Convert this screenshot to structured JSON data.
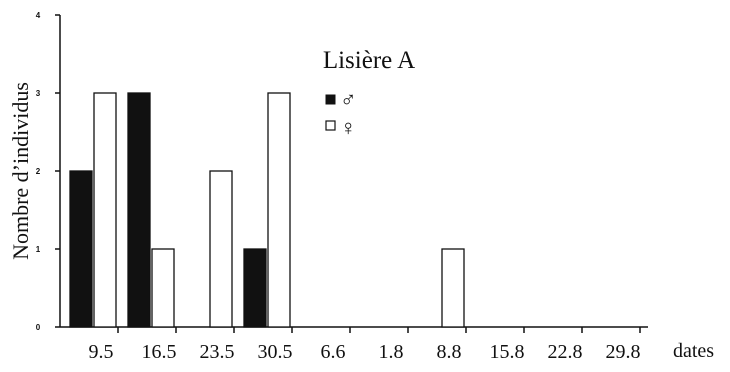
{
  "chart_data": {
    "type": "bar",
    "title": "Lisière A",
    "ylabel": "Nombre d’individus",
    "xlabel": "dates",
    "categories": [
      "9.5",
      "16.5",
      "23.5",
      "30.5",
      "6.6",
      "1.8",
      "8.8",
      "15.8",
      "22.8",
      "29.8"
    ],
    "series": [
      {
        "name": "♂",
        "color": "#111111",
        "values": [
          2,
          3,
          0,
          1,
          0,
          0,
          0,
          0,
          0,
          0
        ]
      },
      {
        "name": "♀",
        "color": "#ffffff",
        "values": [
          3,
          1,
          2,
          3,
          0,
          0,
          1,
          0,
          0,
          0
        ]
      }
    ],
    "yticks": [
      "0",
      "1",
      "2",
      "3",
      "4"
    ],
    "ylim": [
      0,
      4
    ],
    "grid": false,
    "legend": "top-center"
  }
}
